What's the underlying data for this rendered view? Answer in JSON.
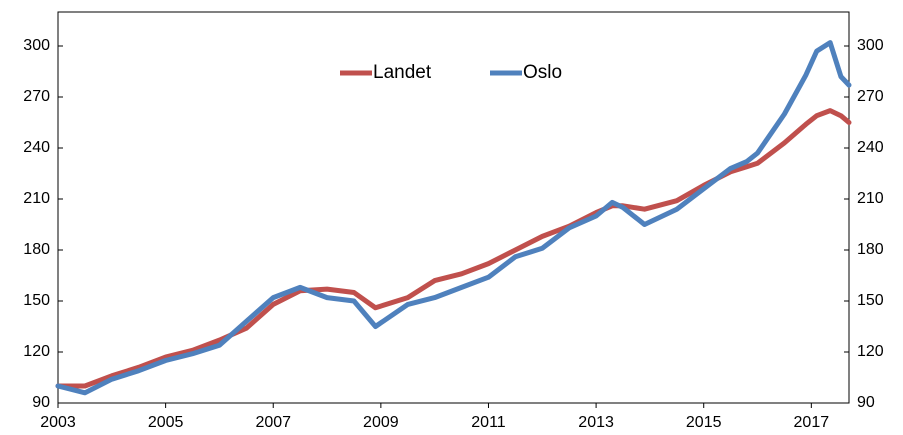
{
  "chart_data": {
    "type": "line",
    "x": [
      2003,
      2003.5,
      2004,
      2004.5,
      2005,
      2005.5,
      2006,
      2006.5,
      2007,
      2007.5,
      2008,
      2008.5,
      2008.9,
      2009.5,
      2010,
      2010.5,
      2011,
      2011.5,
      2012,
      2012.5,
      2013,
      2013.3,
      2013.5,
      2013.9,
      2014.5,
      2015,
      2015.5,
      2015.8,
      2016,
      2016.5,
      2016.9,
      2017.1,
      2017.35,
      2017.55,
      2017.7
    ],
    "series": [
      {
        "name": "Landet",
        "color": "#c0504d",
        "values": [
          100,
          100,
          106,
          111,
          117,
          121,
          127,
          134,
          148,
          156,
          157,
          155,
          146,
          152,
          162,
          166,
          172,
          180,
          188,
          194,
          202,
          206,
          206,
          204,
          209,
          218,
          226,
          229,
          231,
          243,
          254,
          259,
          262,
          259,
          255
        ]
      },
      {
        "name": "Oslo",
        "color": "#4f81bd",
        "values": [
          100,
          96,
          104,
          109,
          115,
          119,
          124,
          138,
          152,
          158,
          152,
          150,
          135,
          148,
          152,
          158,
          164,
          176,
          181,
          193,
          200,
          208,
          205,
          195,
          204,
          216,
          228,
          232,
          237,
          260,
          283,
          297,
          302,
          282,
          277
        ]
      }
    ],
    "xlim": [
      2003,
      2017.7
    ],
    "xticks": [
      2003,
      2005,
      2007,
      2009,
      2011,
      2013,
      2015,
      2017
    ],
    "ylim": [
      90,
      320
    ],
    "yticks": [
      90,
      120,
      150,
      180,
      210,
      240,
      270,
      300
    ],
    "y2lim": [
      90,
      320
    ],
    "y2ticks": [
      90,
      120,
      150,
      180,
      210,
      240,
      270,
      300
    ],
    "legend": "top"
  }
}
